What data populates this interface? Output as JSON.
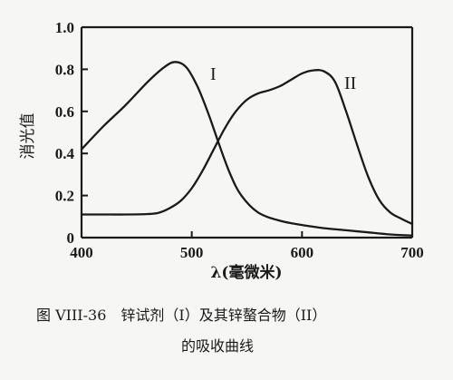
{
  "chart_data": {
    "type": "line",
    "xlabel": "λ(毫微米)",
    "ylabel": "消光值",
    "xlim": [
      400,
      700
    ],
    "ylim": [
      0,
      1.0
    ],
    "x_ticks": [
      "400",
      "500",
      "600",
      "700"
    ],
    "y_ticks": [
      "0",
      "0.2",
      "0.4",
      "0.6",
      "0.8",
      "1.0"
    ],
    "grid": false,
    "series": [
      {
        "name": "I",
        "x": [
          400,
          420,
          440,
          460,
          475,
          485,
          495,
          505,
          515,
          525,
          535,
          545,
          560,
          580,
          600,
          620,
          640,
          660,
          680,
          700
        ],
        "y": [
          0.42,
          0.53,
          0.63,
          0.74,
          0.81,
          0.835,
          0.81,
          0.72,
          0.59,
          0.44,
          0.3,
          0.2,
          0.12,
          0.08,
          0.06,
          0.045,
          0.035,
          0.025,
          0.015,
          0.01
        ]
      },
      {
        "name": "II",
        "x": [
          400,
          420,
          440,
          460,
          470,
          480,
          490,
          500,
          510,
          520,
          530,
          540,
          550,
          560,
          570,
          580,
          590,
          600,
          610,
          620,
          630,
          640,
          650,
          660,
          670,
          680,
          690,
          700
        ],
        "y": [
          0.11,
          0.11,
          0.11,
          0.112,
          0.118,
          0.14,
          0.175,
          0.235,
          0.32,
          0.42,
          0.52,
          0.6,
          0.655,
          0.685,
          0.7,
          0.72,
          0.75,
          0.78,
          0.795,
          0.79,
          0.74,
          0.6,
          0.44,
          0.29,
          0.18,
          0.12,
          0.09,
          0.065
        ]
      }
    ]
  },
  "caption": {
    "line1": "图 VIII-36　锌试剂（I）及其锌螯合物（II）",
    "line2": "的吸收曲线"
  }
}
